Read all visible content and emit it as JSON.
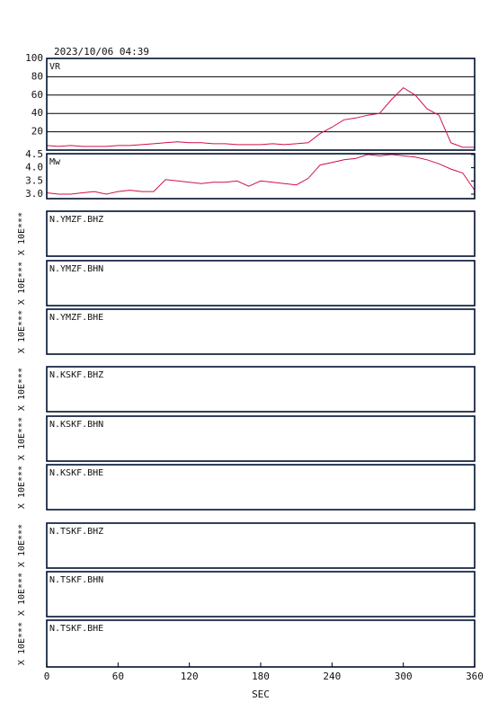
{
  "header": {
    "title": "2023/10/06 04:39"
  },
  "chart_data": [
    {
      "type": "line",
      "title": "VR",
      "color": "#d0104a",
      "grid": true,
      "x": [
        0,
        10,
        20,
        30,
        40,
        50,
        60,
        70,
        80,
        90,
        100,
        110,
        120,
        130,
        140,
        150,
        160,
        170,
        180,
        190,
        200,
        210,
        220,
        230,
        240,
        250,
        260,
        270,
        280,
        290,
        300,
        310,
        320,
        330,
        340,
        350,
        360
      ],
      "values": [
        5,
        4,
        5,
        4,
        4,
        4,
        5,
        5,
        6,
        7,
        8,
        9,
        8,
        8,
        7,
        7,
        6,
        6,
        6,
        7,
        6,
        7,
        8,
        18,
        25,
        33,
        35,
        38,
        40,
        55,
        68,
        60,
        45,
        38,
        8,
        3,
        3
      ],
      "ylim": [
        0,
        100
      ],
      "yticks": [
        20,
        40,
        60,
        80,
        100
      ]
    },
    {
      "type": "line",
      "title": "Mw",
      "color": "#d0104a",
      "grid": false,
      "x": [
        0,
        10,
        20,
        30,
        40,
        50,
        60,
        70,
        80,
        90,
        100,
        110,
        120,
        130,
        140,
        150,
        160,
        170,
        180,
        190,
        200,
        210,
        220,
        230,
        240,
        250,
        260,
        270,
        280,
        290,
        300,
        310,
        320,
        330,
        340,
        350,
        360
      ],
      "values": [
        3.05,
        3.0,
        3.0,
        3.05,
        3.1,
        3.0,
        3.1,
        3.15,
        3.1,
        3.1,
        3.55,
        3.5,
        3.45,
        3.4,
        3.45,
        3.45,
        3.5,
        3.3,
        3.5,
        3.45,
        3.4,
        3.35,
        3.6,
        4.1,
        4.2,
        4.3,
        4.35,
        4.5,
        4.45,
        4.5,
        4.45,
        4.4,
        4.3,
        4.15,
        3.95,
        3.8,
        3.15
      ],
      "ylim": [
        2.83,
        4.53
      ],
      "yticks": [
        {
          "value": 3.0,
          "label": "3.0"
        },
        3.5,
        {
          "value": 4.0,
          "label": "4.0"
        },
        4.5
      ]
    }
  ],
  "stations": [
    {
      "label": "N.YMZF.BHZ",
      "scale_label": "X 10E***"
    },
    {
      "label": "N.YMZF.BHN",
      "scale_label": "X 10E***"
    },
    {
      "label": "N.YMZF.BHE",
      "scale_label": "X 10E***"
    },
    {
      "label": "N.KSKF.BHZ",
      "scale_label": "X 10E***"
    },
    {
      "label": "N.KSKF.BHN",
      "scale_label": "X 10E***"
    },
    {
      "label": "N.KSKF.BHE",
      "scale_label": "X 10E***"
    },
    {
      "label": "N.TSKF.BHZ",
      "scale_label": "X 10E***"
    },
    {
      "label": "N.TSKF.BHN",
      "scale_label": "X 10E***"
    },
    {
      "label": "N.TSKF.BHE",
      "scale_label": "X 10E***"
    }
  ],
  "time_axis": {
    "label": "SEC",
    "xlim": [
      0,
      360
    ],
    "xticks": [
      0,
      60,
      120,
      180,
      240,
      300,
      360
    ]
  }
}
